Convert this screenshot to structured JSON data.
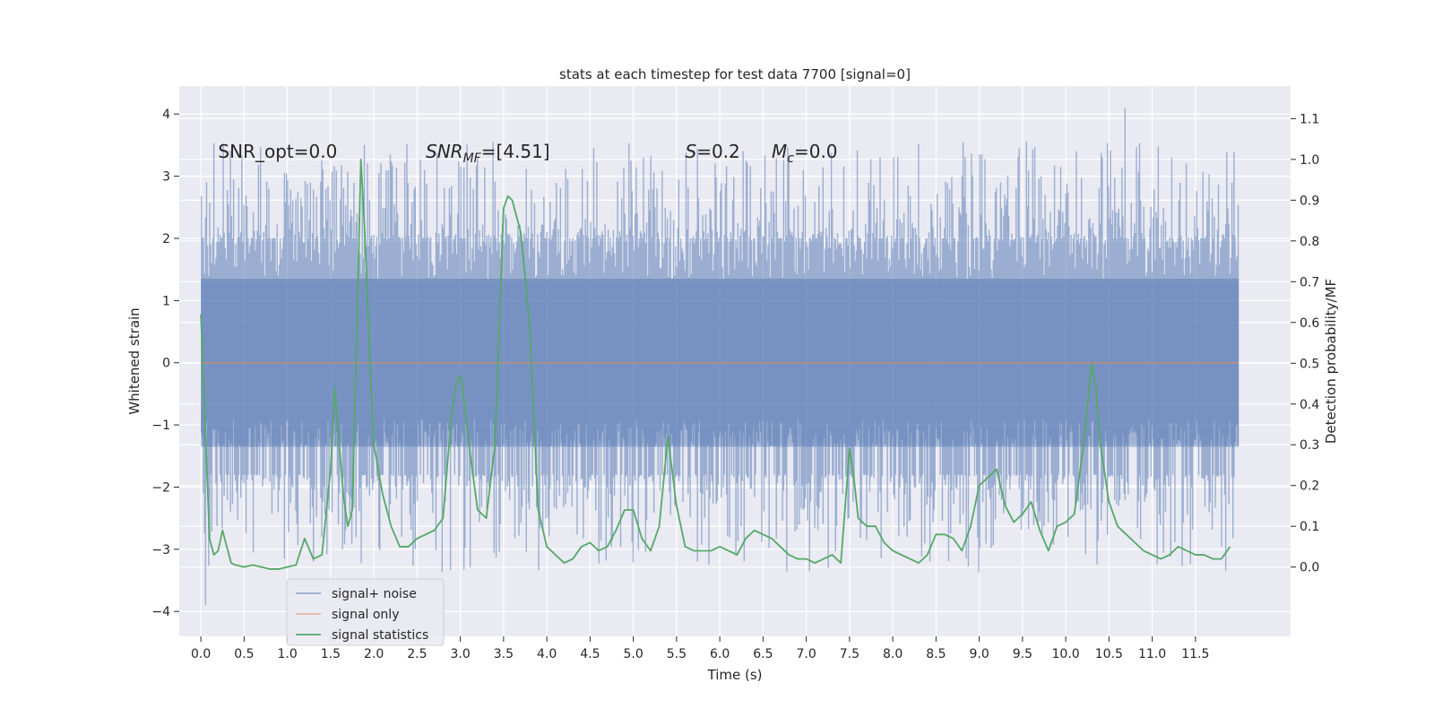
{
  "chart_data": {
    "type": "line",
    "title": "stats at each timestep for test data 7700 [signal=0]",
    "xlabel": "Time (s)",
    "ylabel": "Whitened strain",
    "y2label": "Detection probability/MF",
    "xlim": [
      -0.25,
      12.6
    ],
    "ylim": [
      -4.4,
      4.45
    ],
    "y2lim": [
      -0.17,
      1.18
    ],
    "x_ticks": [
      0.0,
      0.5,
      1.0,
      1.5,
      2.0,
      2.5,
      3.0,
      3.5,
      4.0,
      4.5,
      5.0,
      5.5,
      6.0,
      6.5,
      7.0,
      7.5,
      8.0,
      8.5,
      9.0,
      9.5,
      10.0,
      10.5,
      11.0,
      11.5
    ],
    "x_tick_labels": [
      "0.0",
      "0.5",
      "1.0",
      "1.5",
      "2.0",
      "2.5",
      "3.0",
      "3.5",
      "4.0",
      "4.5",
      "5.0",
      "5.5",
      "6.0",
      "6.5",
      "7.0",
      "7.5",
      "8.0",
      "8.5",
      "9.0",
      "9.5",
      "10.0",
      "10.5",
      "11.0",
      "11.5"
    ],
    "y_ticks": [
      -4,
      -3,
      -2,
      -1,
      0,
      1,
      2,
      3,
      4
    ],
    "y_tick_labels": [
      "−4",
      "−3",
      "−2",
      "−1",
      "0",
      "1",
      "2",
      "3",
      "4"
    ],
    "y2_ticks": [
      0.0,
      0.1,
      0.2,
      0.3,
      0.4,
      0.5,
      0.6,
      0.7,
      0.8,
      0.9,
      1.0,
      1.1
    ],
    "y2_tick_labels": [
      "0.0",
      "0.1",
      "0.2",
      "0.3",
      "0.4",
      "0.5",
      "0.6",
      "0.7",
      "0.8",
      "0.9",
      "1.0",
      "1.1"
    ],
    "grid": true,
    "legend_position": "lower-left",
    "annotations": [
      {
        "text": "SNR_opt=0.0",
        "x": 0.2,
        "y": 3.3
      },
      {
        "text": "SNR_MF=[4.51]",
        "x": 2.6,
        "y": 3.3
      },
      {
        "text": "S=0.2",
        "x": 5.6,
        "y": 3.3
      },
      {
        "text": "M_c=0.0",
        "x": 6.6,
        "y": 3.3
      }
    ],
    "series": [
      {
        "name": "signal+ noise",
        "axis": "left",
        "color": "#4c72b0",
        "envelope": {
          "t_start": 0.0,
          "t_end": 12.0,
          "core_abs": 1.35,
          "typical_max": 2.0,
          "typical_min": -1.8,
          "tip_max": 4.1,
          "tip_min": -3.9
        }
      },
      {
        "name": "signal only",
        "axis": "left",
        "color": "#dd8452",
        "x": [
          0.0,
          12.0
        ],
        "y": [
          0.0,
          0.0
        ]
      },
      {
        "name": "signal statistics",
        "axis": "right",
        "color": "#55a868",
        "x": [
          0.0,
          0.1,
          0.15,
          0.2,
          0.25,
          0.3,
          0.35,
          0.4,
          0.5,
          0.6,
          0.7,
          0.8,
          0.9,
          1.0,
          1.1,
          1.2,
          1.3,
          1.4,
          1.5,
          1.55,
          1.6,
          1.65,
          1.7,
          1.75,
          1.8,
          1.85,
          1.9,
          1.95,
          2.0,
          2.1,
          2.2,
          2.3,
          2.4,
          2.5,
          2.6,
          2.7,
          2.8,
          2.9,
          2.95,
          3.0,
          3.05,
          3.1,
          3.2,
          3.3,
          3.4,
          3.45,
          3.5,
          3.55,
          3.6,
          3.7,
          3.8,
          3.9,
          4.0,
          4.1,
          4.2,
          4.3,
          4.4,
          4.5,
          4.6,
          4.7,
          4.8,
          4.9,
          5.0,
          5.1,
          5.2,
          5.3,
          5.4,
          5.5,
          5.6,
          5.7,
          5.8,
          5.9,
          6.0,
          6.1,
          6.2,
          6.3,
          6.4,
          6.5,
          6.6,
          6.7,
          6.8,
          6.9,
          7.0,
          7.1,
          7.2,
          7.3,
          7.4,
          7.5,
          7.55,
          7.6,
          7.7,
          7.8,
          7.9,
          8.0,
          8.1,
          8.2,
          8.3,
          8.4,
          8.5,
          8.6,
          8.7,
          8.8,
          8.9,
          9.0,
          9.1,
          9.2,
          9.3,
          9.4,
          9.5,
          9.6,
          9.7,
          9.8,
          9.9,
          10.0,
          10.1,
          10.2,
          10.3,
          10.35,
          10.4,
          10.5,
          10.6,
          10.7,
          10.8,
          10.9,
          11.0,
          11.1,
          11.2,
          11.3,
          11.4,
          11.5,
          11.6,
          11.7,
          11.8,
          11.9
        ],
        "y": [
          0.62,
          0.07,
          0.03,
          0.04,
          0.09,
          0.05,
          0.01,
          0.005,
          0.0,
          0.005,
          0.0,
          -0.005,
          -0.005,
          0.0,
          0.005,
          0.07,
          0.02,
          0.03,
          0.24,
          0.44,
          0.3,
          0.17,
          0.1,
          0.14,
          0.55,
          1.0,
          0.8,
          0.53,
          0.3,
          0.18,
          0.1,
          0.05,
          0.05,
          0.07,
          0.08,
          0.09,
          0.12,
          0.38,
          0.45,
          0.47,
          0.4,
          0.3,
          0.14,
          0.12,
          0.3,
          0.58,
          0.88,
          0.91,
          0.9,
          0.82,
          0.6,
          0.14,
          0.05,
          0.03,
          0.01,
          0.02,
          0.05,
          0.06,
          0.04,
          0.05,
          0.09,
          0.14,
          0.14,
          0.07,
          0.04,
          0.1,
          0.32,
          0.15,
          0.05,
          0.04,
          0.04,
          0.04,
          0.05,
          0.04,
          0.03,
          0.07,
          0.09,
          0.08,
          0.07,
          0.05,
          0.03,
          0.02,
          0.02,
          0.01,
          0.02,
          0.03,
          0.01,
          0.29,
          0.22,
          0.12,
          0.1,
          0.1,
          0.06,
          0.04,
          0.03,
          0.02,
          0.01,
          0.03,
          0.08,
          0.08,
          0.07,
          0.04,
          0.1,
          0.2,
          0.22,
          0.24,
          0.15,
          0.11,
          0.13,
          0.16,
          0.09,
          0.04,
          0.1,
          0.11,
          0.13,
          0.29,
          0.5,
          0.44,
          0.3,
          0.16,
          0.1,
          0.08,
          0.06,
          0.04,
          0.03,
          0.02,
          0.03,
          0.05,
          0.04,
          0.03,
          0.03,
          0.02,
          0.02,
          0.05
        ]
      }
    ]
  }
}
